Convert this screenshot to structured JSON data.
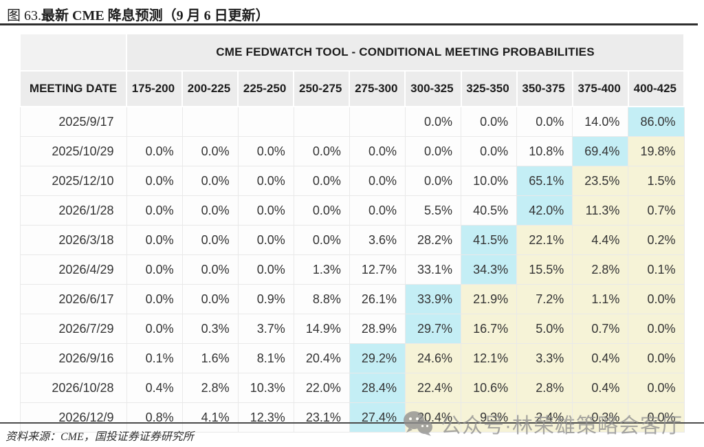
{
  "figure": {
    "label": "图 63.",
    "title": "最新 CME 降息预测（9 月 6 日更新）"
  },
  "table": {
    "spanning_header": "CME FEDWATCH TOOL - CONDITIONAL MEETING PROBABILITIES",
    "date_column_header": "MEETING DATE",
    "rate_headers": [
      "175-200",
      "200-225",
      "225-250",
      "250-275",
      "275-300",
      "300-325",
      "325-350",
      "350-375",
      "375-400",
      "400-425"
    ],
    "rows": [
      {
        "date": "2025/9/17",
        "values": [
          "",
          "",
          "",
          "",
          "",
          "0.0%",
          "0.0%",
          "0.0%",
          "14.0%",
          "86.0%"
        ],
        "styles": [
          "plain",
          "plain",
          "plain",
          "plain",
          "plain",
          "plain",
          "plain",
          "plain",
          "plain",
          "cyan"
        ]
      },
      {
        "date": "2025/10/29",
        "values": [
          "0.0%",
          "0.0%",
          "0.0%",
          "0.0%",
          "0.0%",
          "0.0%",
          "0.0%",
          "10.8%",
          "69.4%",
          "19.8%"
        ],
        "styles": [
          "plain",
          "plain",
          "plain",
          "plain",
          "plain",
          "plain",
          "plain",
          "plain",
          "cyan",
          "yellow"
        ]
      },
      {
        "date": "2025/12/10",
        "values": [
          "0.0%",
          "0.0%",
          "0.0%",
          "0.0%",
          "0.0%",
          "0.0%",
          "10.0%",
          "65.1%",
          "23.5%",
          "1.5%"
        ],
        "styles": [
          "plain",
          "plain",
          "plain",
          "plain",
          "plain",
          "plain",
          "plain",
          "cyan",
          "yellow",
          "yellow"
        ]
      },
      {
        "date": "2026/1/28",
        "values": [
          "0.0%",
          "0.0%",
          "0.0%",
          "0.0%",
          "0.0%",
          "5.5%",
          "40.5%",
          "42.0%",
          "11.3%",
          "0.7%"
        ],
        "styles": [
          "plain",
          "plain",
          "plain",
          "plain",
          "plain",
          "plain",
          "plain",
          "cyan",
          "yellow",
          "yellow"
        ]
      },
      {
        "date": "2026/3/18",
        "values": [
          "0.0%",
          "0.0%",
          "0.0%",
          "0.0%",
          "3.6%",
          "28.2%",
          "41.5%",
          "22.1%",
          "4.4%",
          "0.2%"
        ],
        "styles": [
          "plain",
          "plain",
          "plain",
          "plain",
          "plain",
          "plain",
          "cyan",
          "yellow",
          "yellow",
          "yellow"
        ]
      },
      {
        "date": "2026/4/29",
        "values": [
          "0.0%",
          "0.0%",
          "0.0%",
          "1.3%",
          "12.7%",
          "33.1%",
          "34.3%",
          "15.5%",
          "2.8%",
          "0.1%"
        ],
        "styles": [
          "plain",
          "plain",
          "plain",
          "plain",
          "plain",
          "plain",
          "cyan",
          "yellow",
          "yellow",
          "yellow"
        ]
      },
      {
        "date": "2026/6/17",
        "values": [
          "0.0%",
          "0.0%",
          "0.9%",
          "8.8%",
          "26.1%",
          "33.9%",
          "21.9%",
          "7.2%",
          "1.1%",
          "0.0%"
        ],
        "styles": [
          "plain",
          "plain",
          "plain",
          "plain",
          "plain",
          "cyan",
          "yellow",
          "yellow",
          "yellow",
          "yellow"
        ]
      },
      {
        "date": "2026/7/29",
        "values": [
          "0.0%",
          "0.3%",
          "3.7%",
          "14.9%",
          "28.9%",
          "29.7%",
          "16.7%",
          "5.0%",
          "0.7%",
          "0.0%"
        ],
        "styles": [
          "plain",
          "plain",
          "plain",
          "plain",
          "plain",
          "cyan",
          "yellow",
          "yellow",
          "yellow",
          "yellow"
        ]
      },
      {
        "date": "2026/9/16",
        "values": [
          "0.1%",
          "1.6%",
          "8.1%",
          "20.4%",
          "29.2%",
          "24.6%",
          "12.1%",
          "3.3%",
          "0.4%",
          "0.0%"
        ],
        "styles": [
          "plain",
          "plain",
          "plain",
          "plain",
          "cyan",
          "yellow",
          "yellow",
          "yellow",
          "yellow",
          "yellow"
        ]
      },
      {
        "date": "2026/10/28",
        "values": [
          "0.4%",
          "2.8%",
          "10.3%",
          "22.0%",
          "28.4%",
          "22.4%",
          "10.6%",
          "2.8%",
          "0.4%",
          "0.0%"
        ],
        "styles": [
          "plain",
          "plain",
          "plain",
          "plain",
          "cyan",
          "yellow",
          "yellow",
          "yellow",
          "yellow",
          "yellow"
        ]
      },
      {
        "date": "2026/12/9",
        "values": [
          "0.8%",
          "4.1%",
          "12.3%",
          "23.1%",
          "27.4%",
          "20.4%",
          "9.3%",
          "2.4%",
          "0.3%",
          "0.0%"
        ],
        "styles": [
          "plain",
          "plain",
          "plain",
          "plain",
          "cyan",
          "yellow",
          "yellow",
          "yellow",
          "yellow",
          "yellow"
        ]
      }
    ]
  },
  "source": "资料来源：CME，国投证券证券研究所",
  "watermark": {
    "icon": "wechat-icon",
    "text": "公众号·林荣雄策略会客厅"
  },
  "colors": {
    "highlight_cyan": "#c4eef5",
    "highlight_yellow": "#f6f3d7",
    "header_bg": "#ececec",
    "title_rule": "#2e2e2e"
  }
}
